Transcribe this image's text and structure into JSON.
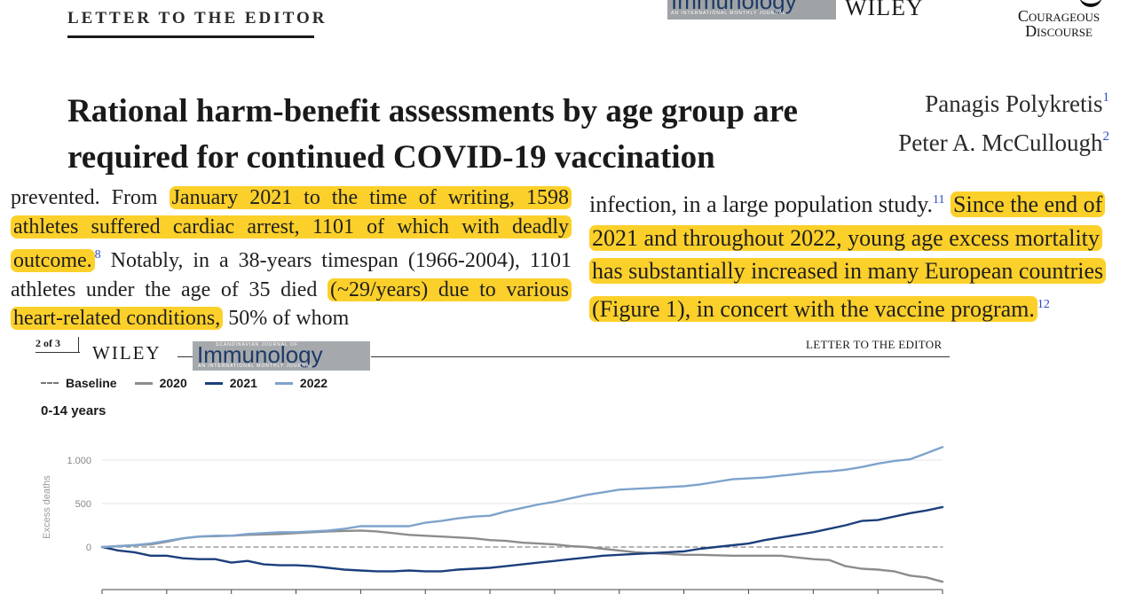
{
  "header": {
    "section_label": "LETTER TO THE EDITOR",
    "journal_logo": "Immunology",
    "journal_logo_subtitle": "AN INTERNATIONAL MONTHLY JOURNAL",
    "publisher": "WILEY",
    "watermark_line1": "Courageous",
    "watermark_line2": "Discourse"
  },
  "article": {
    "title": "Rational harm-benefit assessments by age group are required for continued COVID-19 vaccination",
    "authors": [
      {
        "name": "Panagis Polykretis",
        "ref": "1"
      },
      {
        "name": "Peter A. McCullough",
        "ref": "2"
      }
    ]
  },
  "excerpt_left": {
    "t1": "prevented. From ",
    "h1": "January 2021 to the time of writing, 1598 athletes suffered cardiac arrest, 1101 of which with deadly outcome.",
    "ref1": "8",
    "t2": " Notably, in a 38-years timespan (1966-2004), 1101 athletes under the age of 35 died ",
    "h2": "(~29/years) due to various heart-related conditions,",
    "t3": " 50% of whom"
  },
  "excerpt_right": {
    "t1": "infection, in a large population study.",
    "ref1": "11",
    "h1": "Since the end of 2021 and throughout 2022, young age excess mortality has substantially increased in many European countries (Figure 1), in concert with the vaccine program.",
    "ref2": "12"
  },
  "page2_header": {
    "page": "2 of 3",
    "publisher": "WILEY",
    "journal_top": "SCANDINAVIAN JOURNAL OF",
    "journal": "Immunology",
    "journal_subtitle": "AN INTERNATIONAL MONTHLY JOURNAL",
    "section_label": "LETTER TO THE EDITOR"
  },
  "colors": {
    "highlight": "#fcd02a",
    "baseline": "#888888",
    "y2020": "#8c8c8c",
    "y2021": "#1c3f7c",
    "y2022": "#7ea3cc",
    "ref_link": "#2b4cc8"
  },
  "chart_data": {
    "type": "line",
    "subtitle": "0-14 years",
    "ylabel": "Excess deaths",
    "ylim": [
      -400,
      1300
    ],
    "yticks": [
      0,
      500,
      1000
    ],
    "ytick_labels": [
      "0",
      "500",
      "1.000"
    ],
    "xlim": [
      1,
      53
    ],
    "x_tick_positions": [
      1,
      5,
      9,
      13,
      17,
      21,
      25,
      29,
      33,
      37,
      41,
      45,
      49,
      53
    ],
    "x": [
      1,
      2,
      3,
      4,
      5,
      6,
      7,
      8,
      9,
      10,
      11,
      12,
      13,
      14,
      15,
      16,
      17,
      18,
      19,
      20,
      21,
      22,
      23,
      24,
      25,
      26,
      27,
      28,
      29,
      30,
      31,
      32,
      33,
      34,
      35,
      36,
      37,
      38,
      39,
      40,
      41,
      42,
      43,
      44,
      45,
      46,
      47,
      48,
      49,
      50,
      51,
      52,
      53
    ],
    "legend_position": "top-left",
    "series": [
      {
        "name": "Baseline",
        "style": "dashed",
        "color": "#888888",
        "values": [
          0,
          0,
          0,
          0,
          0,
          0,
          0,
          0,
          0,
          0,
          0,
          0,
          0,
          0,
          0,
          0,
          0,
          0,
          0,
          0,
          0,
          0,
          0,
          0,
          0,
          0,
          0,
          0,
          0,
          0,
          0,
          0,
          0,
          0,
          0,
          0,
          0,
          0,
          0,
          0,
          0,
          0,
          0,
          0,
          0,
          0,
          0,
          0,
          0,
          0,
          0,
          0,
          0
        ]
      },
      {
        "name": "2020",
        "style": "solid",
        "color": "#8c8c8c",
        "values": [
          0,
          10,
          20,
          30,
          60,
          100,
          120,
          125,
          130,
          140,
          145,
          150,
          160,
          170,
          180,
          185,
          190,
          180,
          160,
          140,
          130,
          120,
          110,
          100,
          80,
          70,
          50,
          40,
          30,
          10,
          0,
          -20,
          -40,
          -60,
          -70,
          -80,
          -90,
          -90,
          -95,
          -100,
          -100,
          -100,
          -100,
          -120,
          -140,
          -150,
          -220,
          -250,
          -260,
          -280,
          -330,
          -350,
          -400
        ]
      },
      {
        "name": "2021",
        "style": "solid",
        "color": "#1c3f7c",
        "values": [
          0,
          -40,
          -60,
          -100,
          -100,
          -130,
          -140,
          -140,
          -180,
          -160,
          -200,
          -210,
          -210,
          -220,
          -240,
          -260,
          -270,
          -280,
          -280,
          -270,
          -280,
          -280,
          -260,
          -250,
          -240,
          -220,
          -200,
          -180,
          -160,
          -140,
          -120,
          -100,
          -90,
          -80,
          -70,
          -60,
          -50,
          -20,
          0,
          20,
          40,
          80,
          110,
          140,
          170,
          210,
          250,
          300,
          310,
          350,
          390,
          420,
          460
        ]
      },
      {
        "name": "2022",
        "style": "solid",
        "color": "#7ea3cc",
        "values": [
          0,
          10,
          20,
          40,
          70,
          100,
          120,
          130,
          130,
          150,
          160,
          170,
          170,
          180,
          190,
          210,
          240,
          240,
          240,
          240,
          280,
          300,
          330,
          350,
          360,
          410,
          450,
          490,
          520,
          560,
          600,
          630,
          660,
          670,
          680,
          690,
          700,
          720,
          750,
          780,
          790,
          800,
          820,
          840,
          860,
          870,
          890,
          920,
          960,
          990,
          1010,
          1080,
          1150
        ]
      }
    ]
  }
}
